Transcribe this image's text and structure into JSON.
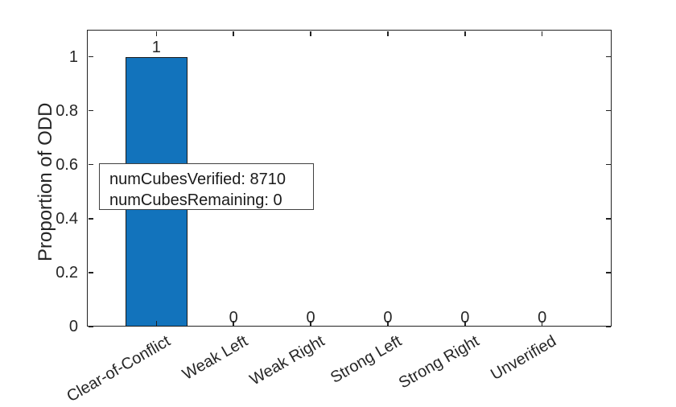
{
  "figure": {
    "background_color": "#ffffff",
    "axis_color": "#222222",
    "text_color": "#262626"
  },
  "chart_data": {
    "type": "bar",
    "title": "",
    "xlabel": "",
    "ylabel": "Proportion of ODD",
    "categories": [
      "Clear-of-Conflict",
      "Weak Left",
      "Weak Right",
      "Strong Left",
      "Strong Right",
      "Unverified"
    ],
    "values": [
      1,
      0,
      0,
      0,
      0,
      0
    ],
    "bar_value_labels": [
      "1",
      "0",
      "0",
      "0",
      "0",
      "0"
    ],
    "ylim": [
      0,
      1.1
    ],
    "yticks": [
      0,
      0.2,
      0.4,
      0.6,
      0.8,
      1
    ],
    "ytick_labels": [
      "0",
      "0.2",
      "0.4",
      "0.6",
      "0.8",
      "1"
    ],
    "xtick_rotation_deg": -30,
    "grid": false,
    "legend_position": "none",
    "bar_color": "#1273BC",
    "bar_edge_color": "#1a1a1a",
    "annotation": {
      "lines": [
        "numCubesVerified: 8710",
        "numCubesRemaining: 0"
      ],
      "border_color": "#404040",
      "background": "#ffffff"
    }
  }
}
